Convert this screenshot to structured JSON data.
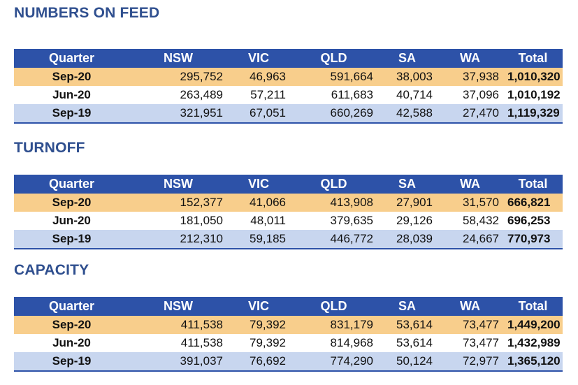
{
  "sections": [
    {
      "title": "NUMBERS ON FEED",
      "headers": [
        "Quarter",
        "NSW",
        "VIC",
        "QLD",
        "SA",
        "WA",
        "Total"
      ],
      "rows": [
        [
          "Sep-20",
          "295,752",
          "46,963",
          "591,664",
          "38,003",
          "37,938",
          "1,010,320"
        ],
        [
          "Jun-20",
          "263,489",
          "57,211",
          "611,683",
          "40,714",
          "37,096",
          "1,010,192"
        ],
        [
          "Sep-19",
          "321,951",
          "67,051",
          "660,269",
          "42,588",
          "27,470",
          "1,119,329"
        ]
      ]
    },
    {
      "title": "TURNOFF",
      "headers": [
        "Quarter",
        "NSW",
        "VIC",
        "QLD",
        "SA",
        "WA",
        "Total"
      ],
      "rows": [
        [
          "Sep-20",
          "152,377",
          "41,066",
          "413,908",
          "27,901",
          "31,570",
          "666,821"
        ],
        [
          "Jun-20",
          "181,050",
          "48,011",
          "379,635",
          "29,126",
          "58,432",
          "696,253"
        ],
        [
          "Sep-19",
          "212,310",
          "59,185",
          "446,772",
          "28,039",
          "24,667",
          "770,973"
        ]
      ]
    },
    {
      "title": "CAPACITY",
      "headers": [
        "Quarter",
        "NSW",
        "VIC",
        "QLD",
        "SA",
        "WA",
        "Total"
      ],
      "rows": [
        [
          "Sep-20",
          "411,538",
          "79,392",
          "831,179",
          "53,614",
          "73,477",
          "1,449,200"
        ],
        [
          "Jun-20",
          "411,538",
          "79,392",
          "814,968",
          "53,614",
          "73,477",
          "1,432,989"
        ],
        [
          "Sep-19",
          "391,037",
          "76,692",
          "774,290",
          "50,124",
          "72,977",
          "1,365,120"
        ]
      ]
    }
  ],
  "colors": {
    "title": "#2f4f8f",
    "header_bg": "#2d52a8",
    "row_current": "#f8ce8c",
    "row_previous": "#ffffff",
    "row_last_year": "#c8d6ef"
  }
}
